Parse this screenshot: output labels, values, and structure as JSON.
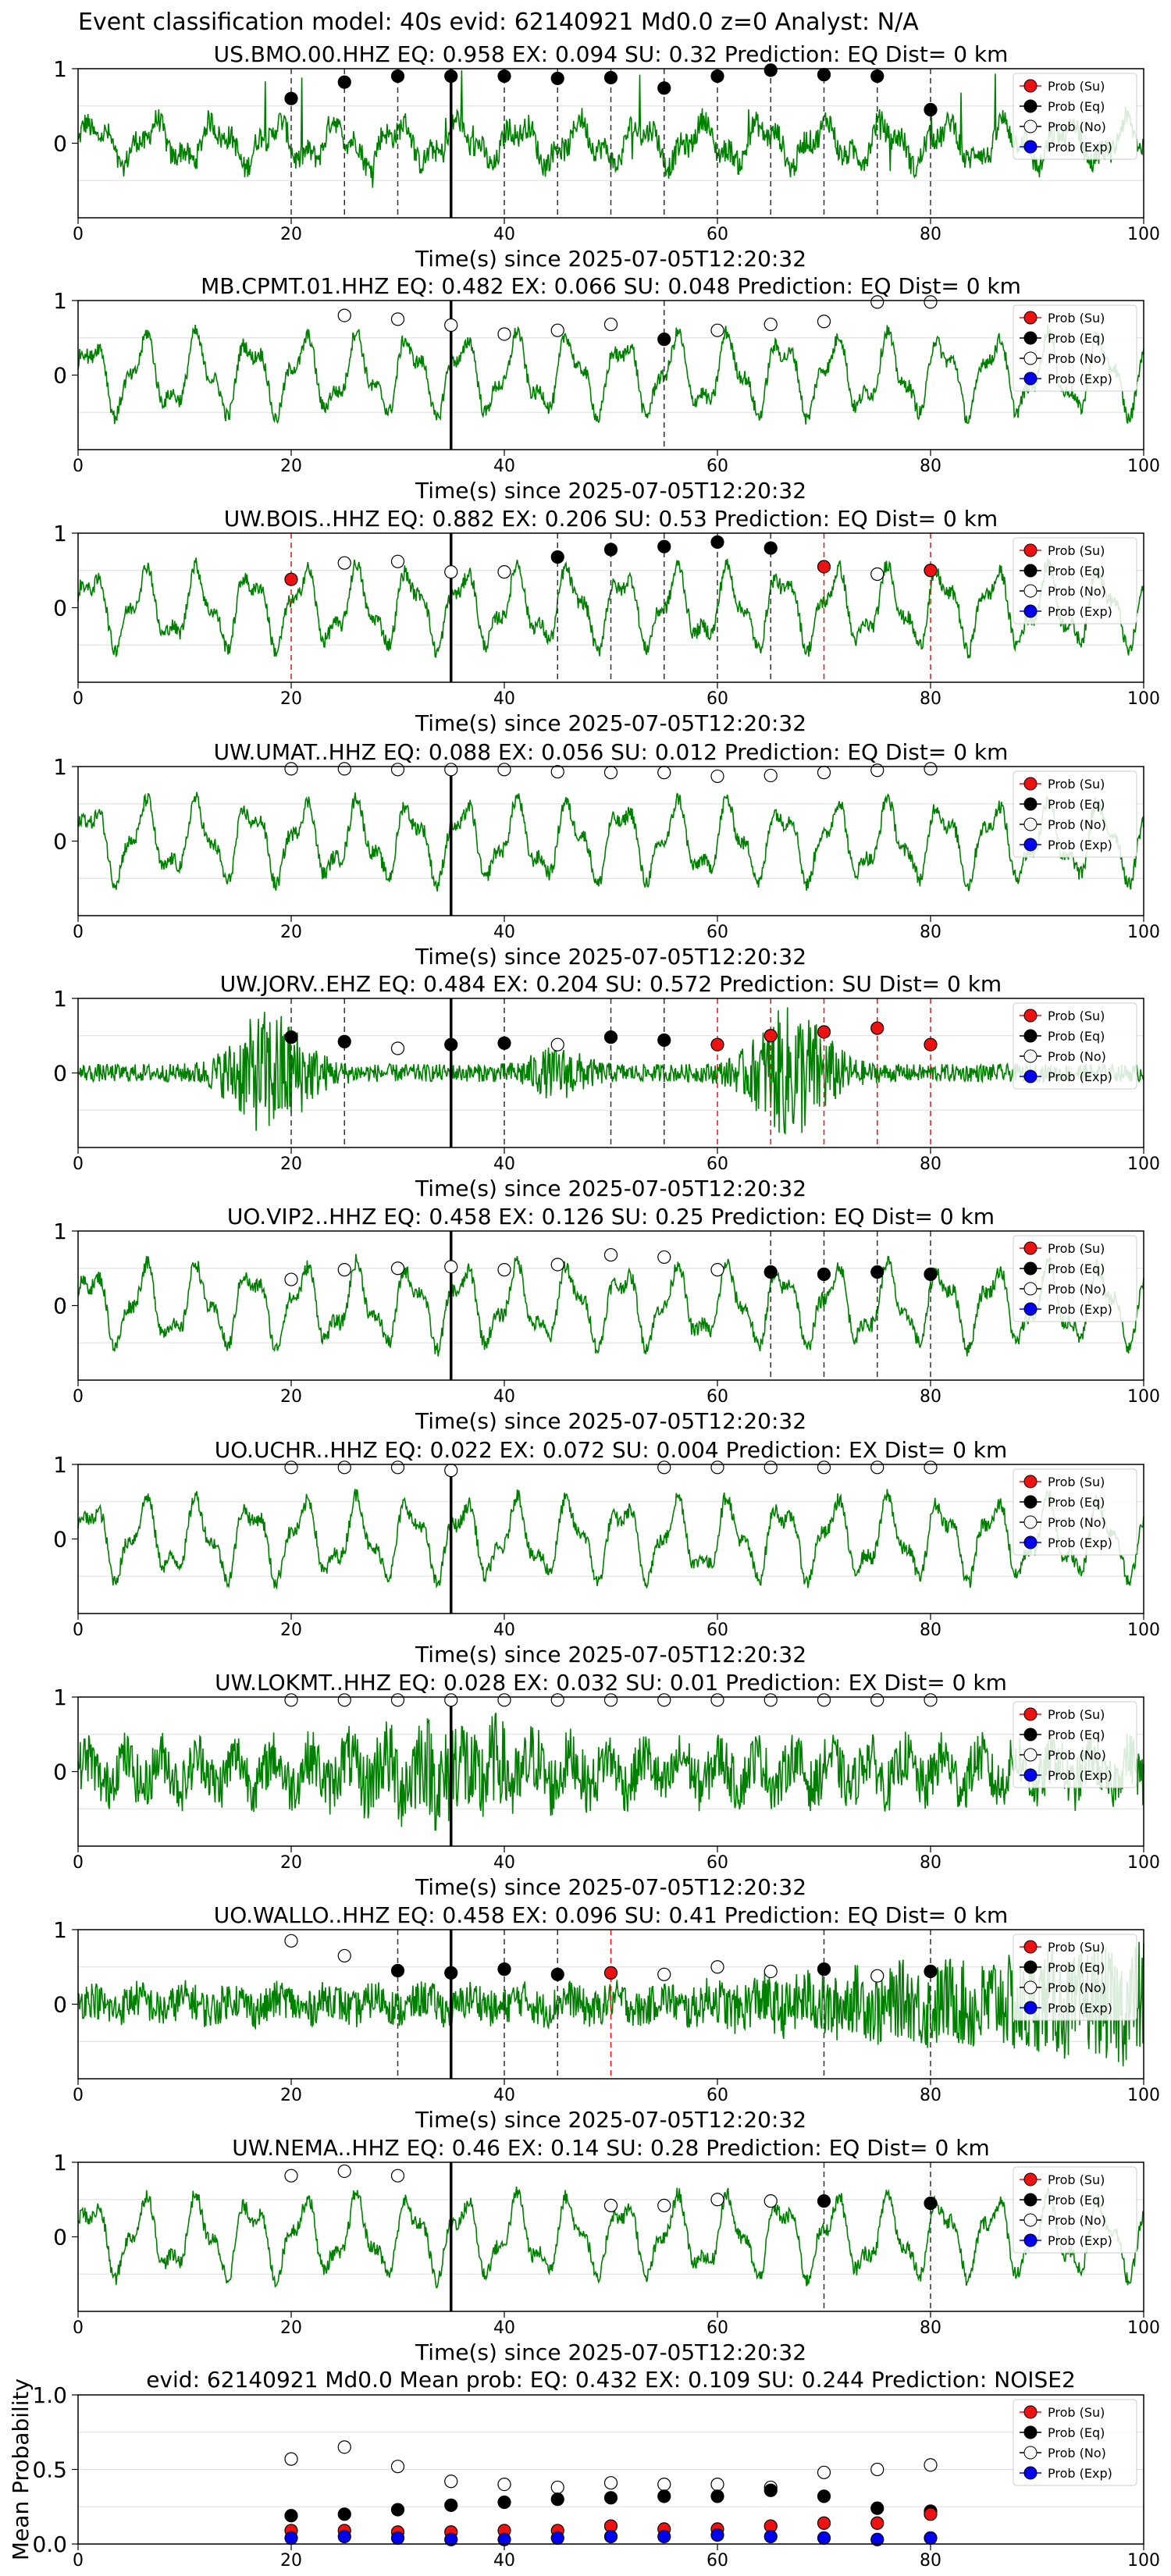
{
  "figure_title": "Event classification model: 40s evid: 62140921 Md0.0 z=0 Analyst: N/A",
  "legend_labels": [
    "Prob (Su)",
    "Prob (Eq)",
    "Prob (No)",
    "Prob (Exp)"
  ],
  "colors": {
    "su": "#ee1111",
    "eq": "#000000",
    "no": "#ffffff",
    "exp": "#0000ee",
    "trace": "#008000"
  },
  "chart_data": [
    {
      "type": "line",
      "id": "BMO",
      "title": "US.BMO.00.HHZ    EQ: 0.958   EX: 0.094   SU: 0.32    Prediction: EQ     Dist= 0 km",
      "xlabel": "Time(s) since 2025-07-05T12:20:32",
      "xlim": [
        0,
        100
      ],
      "ylim": [
        -1,
        1
      ],
      "xticks": [
        0,
        20,
        40,
        60,
        80,
        100
      ],
      "yticks": [
        0,
        1
      ],
      "pick_time": 35,
      "marker_times": [
        20,
        25,
        30,
        35,
        40,
        45,
        50,
        55,
        60,
        65,
        70,
        75,
        80
      ],
      "marker_values": [
        0.6,
        0.82,
        0.9,
        0.9,
        0.9,
        0.87,
        0.88,
        0.74,
        0.9,
        0.98,
        0.92,
        0.9,
        0.45
      ],
      "marker_classes": [
        "eq",
        "eq",
        "eq",
        "eq",
        "eq",
        "eq",
        "eq",
        "eq",
        "eq",
        "eq",
        "eq",
        "eq",
        "eq"
      ],
      "trace_style": "mixed",
      "grid": true,
      "legend": "upper right"
    },
    {
      "type": "line",
      "id": "CPMT",
      "title": "MB.CPMT.01.HHZ    EQ: 0.482   EX: 0.066   SU: 0.048    Prediction: EQ     Dist= 0 km",
      "xlabel": "Time(s) since 2025-07-05T12:20:32",
      "xlim": [
        0,
        100
      ],
      "ylim": [
        -1,
        1
      ],
      "xticks": [
        0,
        20,
        40,
        60,
        80,
        100
      ],
      "yticks": [
        0,
        1
      ],
      "pick_time": 35,
      "marker_times": [
        25,
        30,
        35,
        40,
        45,
        50,
        55,
        60,
        65,
        70,
        75,
        80
      ],
      "marker_values": [
        0.8,
        0.75,
        0.67,
        0.55,
        0.6,
        0.68,
        0.48,
        0.6,
        0.68,
        0.72,
        0.98,
        0.98
      ],
      "marker_classes": [
        "no",
        "no",
        "no",
        "no",
        "no",
        "no",
        "eq",
        "no",
        "no",
        "no",
        "no",
        "no"
      ],
      "trace_style": "ocean",
      "grid": true,
      "legend": "upper right"
    },
    {
      "type": "line",
      "id": "BOIS",
      "title": "UW.BOIS..HHZ    EQ: 0.882   EX: 0.206   SU: 0.53    Prediction: EQ     Dist= 0 km",
      "xlabel": "Time(s) since 2025-07-05T12:20:32",
      "xlim": [
        0,
        100
      ],
      "ylim": [
        -1,
        1
      ],
      "xticks": [
        0,
        20,
        40,
        60,
        80,
        100
      ],
      "yticks": [
        0,
        1
      ],
      "pick_time": 35,
      "marker_times": [
        20,
        25,
        30,
        35,
        40,
        45,
        50,
        55,
        60,
        65,
        70,
        75,
        80
      ],
      "marker_values": [
        0.38,
        0.6,
        0.62,
        0.48,
        0.48,
        0.68,
        0.78,
        0.82,
        0.88,
        0.8,
        0.55,
        0.45,
        0.5
      ],
      "marker_classes": [
        "su",
        "no",
        "no",
        "no",
        "no",
        "eq",
        "eq",
        "eq",
        "eq",
        "eq",
        "su",
        "no",
        "su"
      ],
      "trace_style": "ocean",
      "grid": true,
      "legend": "upper right"
    },
    {
      "type": "line",
      "id": "UMAT",
      "title": "UW.UMAT..HHZ    EQ: 0.088   EX: 0.056   SU: 0.012    Prediction: EQ     Dist= 0 km",
      "xlabel": "Time(s) since 2025-07-05T12:20:32",
      "xlim": [
        0,
        100
      ],
      "ylim": [
        -1,
        1
      ],
      "xticks": [
        0,
        20,
        40,
        60,
        80,
        100
      ],
      "yticks": [
        0,
        1
      ],
      "pick_time": 35,
      "marker_times": [
        20,
        25,
        30,
        35,
        40,
        45,
        50,
        55,
        60,
        65,
        70,
        75,
        80
      ],
      "marker_values": [
        0.97,
        0.97,
        0.96,
        0.96,
        0.96,
        0.93,
        0.92,
        0.92,
        0.87,
        0.88,
        0.92,
        0.95,
        0.97
      ],
      "marker_classes": [
        "no",
        "no",
        "no",
        "no",
        "no",
        "no",
        "no",
        "no",
        "no",
        "no",
        "no",
        "no",
        "no"
      ],
      "trace_style": "ocean",
      "grid": true,
      "legend": "upper right"
    },
    {
      "type": "line",
      "id": "JORV",
      "title": "UW.JORV..EHZ    EQ: 0.484   EX: 0.204   SU: 0.572    Prediction: SU     Dist= 0 km",
      "xlabel": "Time(s) since 2025-07-05T12:20:32",
      "xlim": [
        0,
        100
      ],
      "ylim": [
        -1,
        1
      ],
      "xticks": [
        0,
        20,
        40,
        60,
        80,
        100
      ],
      "yticks": [
        0,
        1
      ],
      "pick_time": 35,
      "marker_times": [
        20,
        25,
        30,
        35,
        40,
        45,
        50,
        55,
        60,
        65,
        70,
        75,
        80
      ],
      "marker_values": [
        0.48,
        0.42,
        0.33,
        0.38,
        0.4,
        0.38,
        0.48,
        0.44,
        0.38,
        0.5,
        0.55,
        0.6,
        0.38
      ],
      "marker_classes": [
        "eq",
        "eq",
        "no",
        "eq",
        "eq",
        "no",
        "eq",
        "eq",
        "su",
        "su",
        "su",
        "su",
        "su"
      ],
      "trace_style": "burst",
      "grid": true,
      "legend": "upper right"
    },
    {
      "type": "line",
      "id": "VIP2",
      "title": "UO.VIP2..HHZ    EQ: 0.458   EX: 0.126   SU: 0.25    Prediction: EQ     Dist= 0 km",
      "xlabel": "Time(s) since 2025-07-05T12:20:32",
      "xlim": [
        0,
        100
      ],
      "ylim": [
        -1,
        1
      ],
      "xticks": [
        0,
        20,
        40,
        60,
        80,
        100
      ],
      "yticks": [
        0,
        1
      ],
      "pick_time": 35,
      "marker_times": [
        20,
        25,
        30,
        35,
        40,
        45,
        50,
        55,
        60,
        65,
        70,
        75,
        80
      ],
      "marker_values": [
        0.35,
        0.48,
        0.5,
        0.52,
        0.48,
        0.55,
        0.68,
        0.65,
        0.48,
        0.45,
        0.42,
        0.45,
        0.42
      ],
      "marker_classes": [
        "no",
        "no",
        "no",
        "no",
        "no",
        "no",
        "no",
        "no",
        "no",
        "eq",
        "eq",
        "eq",
        "eq"
      ],
      "trace_style": "ocean",
      "grid": true,
      "legend": "upper right"
    },
    {
      "type": "line",
      "id": "UCHR",
      "title": "UO.UCHR..HHZ    EQ: 0.022   EX: 0.072   SU: 0.004    Prediction: EX     Dist= 0 km",
      "xlabel": "Time(s) since 2025-07-05T12:20:32",
      "xlim": [
        0,
        100
      ],
      "ylim": [
        -1,
        1
      ],
      "xticks": [
        0,
        20,
        40,
        60,
        80,
        100
      ],
      "yticks": [
        0,
        1
      ],
      "pick_time": 35,
      "marker_times": [
        20,
        25,
        30,
        35,
        55,
        60,
        65,
        70,
        75,
        80
      ],
      "marker_values": [
        0.96,
        0.96,
        0.96,
        0.92,
        0.96,
        0.96,
        0.96,
        0.96,
        0.96,
        0.96
      ],
      "marker_classes": [
        "no",
        "no",
        "no",
        "no",
        "no",
        "no",
        "no",
        "no",
        "no",
        "no"
      ],
      "trace_style": "ocean",
      "grid": true,
      "legend": "upper right"
    },
    {
      "type": "line",
      "id": "LOKMT",
      "title": "UW.LOKMT..HHZ    EQ: 0.028   EX: 0.032   SU: 0.01    Prediction: EX     Dist= 0 km",
      "xlabel": "Time(s) since 2025-07-05T12:20:32",
      "xlim": [
        0,
        100
      ],
      "ylim": [
        -1,
        1
      ],
      "xticks": [
        0,
        20,
        40,
        60,
        80,
        100
      ],
      "yticks": [
        0,
        1
      ],
      "pick_time": 35,
      "marker_times": [
        20,
        25,
        30,
        35,
        40,
        45,
        50,
        55,
        60,
        65,
        70,
        75,
        80
      ],
      "marker_values": [
        0.96,
        0.96,
        0.96,
        0.96,
        0.96,
        0.96,
        0.96,
        0.96,
        0.96,
        0.96,
        0.96,
        0.96,
        0.96
      ],
      "marker_classes": [
        "no",
        "no",
        "no",
        "no",
        "no",
        "no",
        "no",
        "no",
        "no",
        "no",
        "no",
        "no",
        "no"
      ],
      "trace_style": "dense",
      "grid": true,
      "legend": "upper right"
    },
    {
      "type": "line",
      "id": "WALLO",
      "title": "UO.WALLO..HHZ    EQ: 0.458   EX: 0.096   SU: 0.41    Prediction: EQ     Dist= 0 km",
      "xlabel": "Time(s) since 2025-07-05T12:20:32",
      "xlim": [
        0,
        100
      ],
      "ylim": [
        -1,
        1
      ],
      "xticks": [
        0,
        20,
        40,
        60,
        80,
        100
      ],
      "yticks": [
        0,
        1
      ],
      "pick_time": 35,
      "marker_times": [
        20,
        25,
        30,
        35,
        40,
        45,
        50,
        55,
        60,
        65,
        70,
        75,
        80
      ],
      "marker_values": [
        0.85,
        0.65,
        0.45,
        0.42,
        0.47,
        0.4,
        0.42,
        0.4,
        0.5,
        0.44,
        0.47,
        0.38,
        0.44
      ],
      "marker_classes": [
        "no",
        "no",
        "eq",
        "eq",
        "eq",
        "eq",
        "su",
        "no",
        "no",
        "no",
        "eq",
        "no",
        "eq"
      ],
      "trace_style": "noisy",
      "grid": true,
      "legend": "upper right"
    },
    {
      "type": "line",
      "id": "NEMA",
      "title": "UW.NEMA..HHZ    EQ: 0.46   EX: 0.14   SU: 0.28    Prediction: EQ     Dist= 0 km",
      "xlabel": "Time(s) since 2025-07-05T12:20:32",
      "xlim": [
        0,
        100
      ],
      "ylim": [
        -1,
        1
      ],
      "xticks": [
        0,
        20,
        40,
        60,
        80,
        100
      ],
      "yticks": [
        0,
        1
      ],
      "pick_time": 35,
      "marker_times": [
        20,
        25,
        30,
        50,
        55,
        60,
        65,
        70,
        80
      ],
      "marker_values": [
        0.82,
        0.88,
        0.82,
        0.42,
        0.42,
        0.5,
        0.48,
        0.48,
        0.45
      ],
      "marker_classes": [
        "no",
        "no",
        "no",
        "no",
        "no",
        "no",
        "no",
        "eq",
        "eq"
      ],
      "trace_style": "ocean",
      "grid": true,
      "legend": "upper right"
    },
    {
      "type": "scatter",
      "id": "MEAN",
      "title": "evid: 62140921   Md0.0    Mean prob:    EQ: 0.432   EX: 0.109   SU: 0.244    Prediction: NOISE2",
      "ylabel": "Mean Probability",
      "xlim": [
        0,
        100
      ],
      "ylim": [
        0,
        1
      ],
      "xticks": [
        0,
        20,
        40,
        60,
        80,
        100
      ],
      "yticks": [
        0.0,
        0.5,
        1.0
      ],
      "x": [
        20,
        25,
        30,
        35,
        40,
        45,
        50,
        55,
        60,
        65,
        70,
        75,
        80
      ],
      "series": [
        {
          "cls": "no",
          "values": [
            0.57,
            0.65,
            0.52,
            0.42,
            0.4,
            0.38,
            0.41,
            0.4,
            0.4,
            0.38,
            0.48,
            0.5,
            0.53
          ]
        },
        {
          "cls": "eq",
          "values": [
            0.19,
            0.2,
            0.23,
            0.26,
            0.28,
            0.3,
            0.31,
            0.32,
            0.32,
            0.36,
            0.32,
            0.24,
            0.22
          ]
        },
        {
          "cls": "su",
          "values": [
            0.09,
            0.09,
            0.08,
            0.08,
            0.09,
            0.09,
            0.12,
            0.1,
            0.1,
            0.12,
            0.14,
            0.14,
            0.2
          ]
        },
        {
          "cls": "exp",
          "values": [
            0.04,
            0.05,
            0.04,
            0.03,
            0.03,
            0.04,
            0.05,
            0.05,
            0.06,
            0.05,
            0.04,
            0.03,
            0.04
          ]
        }
      ],
      "grid": true,
      "legend": "upper right"
    }
  ]
}
